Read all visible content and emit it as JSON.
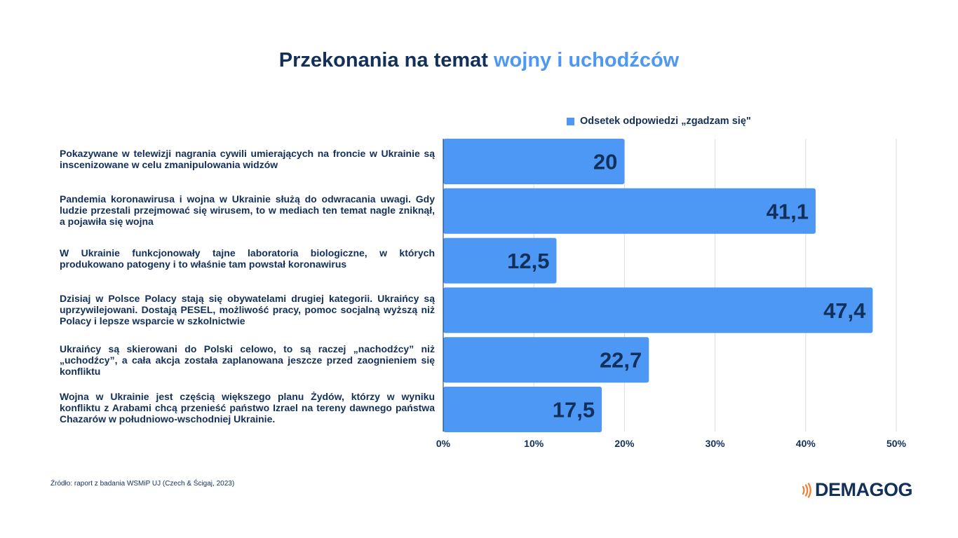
{
  "title": {
    "part1": "Przekonania na temat ",
    "part2": "wojny i uchodźców"
  },
  "legend": {
    "label": "Odsetek odpowiedzi „zgadzam się\""
  },
  "colors": {
    "bar": "#4e98f5",
    "text": "#13305a",
    "accent": "#4e98f5",
    "logo_accent": "#f07d2e"
  },
  "chart_data": {
    "type": "bar",
    "orientation": "horizontal",
    "categories": [
      "Pokazywane w telewizji nagrania cywili umierających na froncie w Ukrainie są inscenizowane w celu zmanipulowania widzów",
      "Pandemia koronawirusa i wojna w Ukrainie służą do odwracania uwagi. Gdy ludzie przestali przejmować się wirusem, to w mediach ten temat nagle zniknął, a pojawiła się wojna",
      "W Ukrainie funkcjonowały tajne laboratoria biologiczne, w których produkowano patogeny i to właśnie tam powstał koronawirus",
      "Dzisiaj w Polsce Polacy stają się obywatelami drugiej kategorii. Ukraińcy są uprzywilejowani. Dostają PESEL, możliwość pracy, pomoc socjalną wyższą niż Polacy i lepsze wsparcie w szkolnictwie",
      "Ukraińcy są skierowani do Polski celowo, to są raczej „nachodźcy” niż „uchodźcy”, a cała akcja została zaplanowana jeszcze przed zaognieniem się konfliktu",
      "Wojna w Ukrainie jest częścią większego planu Żydów, którzy w wyniku konfliktu z Arabami chcą przenieść państwo Izrael na tereny dawnego państwa Chazarów w południowo-wschodniej Ukrainie."
    ],
    "values": [
      20,
      41.1,
      12.5,
      47.4,
      22.7,
      17.5
    ],
    "value_labels": [
      "20",
      "41,1",
      "12,5",
      "47,4",
      "22,7",
      "17,5"
    ],
    "series": [
      {
        "name": "Odsetek odpowiedzi „zgadzam się\"",
        "values": [
          20,
          41.1,
          12.5,
          47.4,
          22.7,
          17.5
        ]
      }
    ],
    "xlim": [
      0,
      50
    ],
    "xticks": [
      0,
      10,
      20,
      30,
      40,
      50
    ],
    "xtick_labels": [
      "0%",
      "10%",
      "20%",
      "30%",
      "40%",
      "50%"
    ],
    "grid": true,
    "legend_position": "top-right"
  },
  "source": "Źródło: raport z badania WSMiP UJ (Czech & Ścigaj, 2023)",
  "logo": {
    "text": "DEMAGOG"
  }
}
